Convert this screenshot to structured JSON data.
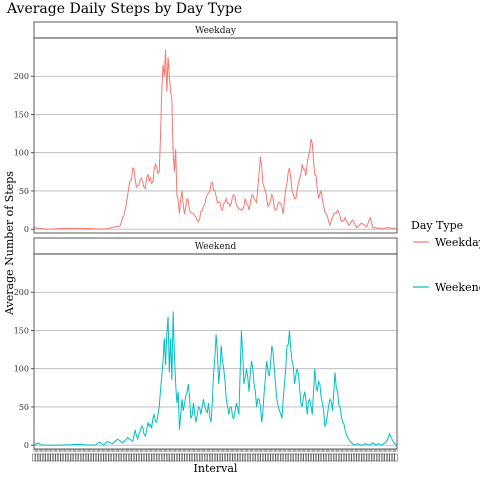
{
  "chart_data": {
    "type": "line",
    "title": "Average Daily Steps by Day Type",
    "xlabel": "Interval",
    "ylabel": "Average Number of Steps",
    "ylim": [
      -5,
      250
    ],
    "yticks": [
      0,
      50,
      100,
      150,
      200
    ],
    "x_range": [
      0,
      287
    ],
    "grid": true,
    "legend": {
      "title": "Day Type",
      "position": "right",
      "entries": [
        "Weekday",
        "Weekend"
      ]
    },
    "panels": [
      {
        "label": "Weekday",
        "color": "#F8766D",
        "keypoints": [
          [
            0,
            2
          ],
          [
            10,
            0
          ],
          [
            24,
            1
          ],
          [
            40,
            1
          ],
          [
            56,
            0
          ],
          [
            64,
            3
          ],
          [
            68,
            4
          ],
          [
            72,
            25
          ],
          [
            75,
            55
          ],
          [
            78,
            80
          ],
          [
            81,
            55
          ],
          [
            84,
            65
          ],
          [
            87,
            55
          ],
          [
            90,
            72
          ],
          [
            93,
            60
          ],
          [
            96,
            85
          ],
          [
            99,
            75
          ],
          [
            101,
            180
          ],
          [
            102,
            215
          ],
          [
            103,
            200
          ],
          [
            104,
            235
          ],
          [
            105,
            180
          ],
          [
            106,
            225
          ],
          [
            107,
            200
          ],
          [
            108,
            180
          ],
          [
            109,
            170
          ],
          [
            110,
            100
          ],
          [
            111,
            75
          ],
          [
            112,
            105
          ],
          [
            113,
            45
          ],
          [
            115,
            20
          ],
          [
            117,
            50
          ],
          [
            119,
            20
          ],
          [
            121,
            40
          ],
          [
            123,
            25
          ],
          [
            126,
            20
          ],
          [
            130,
            10
          ],
          [
            134,
            30
          ],
          [
            137,
            45
          ],
          [
            140,
            60
          ],
          [
            143,
            50
          ],
          [
            146,
            35
          ],
          [
            149,
            25
          ],
          [
            152,
            40
          ],
          [
            155,
            30
          ],
          [
            158,
            45
          ],
          [
            161,
            30
          ],
          [
            164,
            25
          ],
          [
            167,
            40
          ],
          [
            170,
            25
          ],
          [
            173,
            45
          ],
          [
            176,
            35
          ],
          [
            179,
            95
          ],
          [
            181,
            60
          ],
          [
            183,
            50
          ],
          [
            185,
            30
          ],
          [
            188,
            45
          ],
          [
            191,
            25
          ],
          [
            194,
            35
          ],
          [
            197,
            20
          ],
          [
            200,
            60
          ],
          [
            202,
            80
          ],
          [
            204,
            50
          ],
          [
            206,
            40
          ],
          [
            209,
            60
          ],
          [
            212,
            85
          ],
          [
            215,
            70
          ],
          [
            217,
            95
          ],
          [
            219,
            118
          ],
          [
            221,
            90
          ],
          [
            223,
            70
          ],
          [
            225,
            40
          ],
          [
            227,
            50
          ],
          [
            229,
            30
          ],
          [
            231,
            20
          ],
          [
            234,
            5
          ],
          [
            237,
            20
          ],
          [
            240,
            25
          ],
          [
            243,
            10
          ],
          [
            246,
            15
          ],
          [
            249,
            5
          ],
          [
            252,
            12
          ],
          [
            255,
            2
          ],
          [
            259,
            8
          ],
          [
            263,
            3
          ],
          [
            266,
            15
          ],
          [
            268,
            2
          ],
          [
            275,
            1
          ],
          [
            280,
            2
          ],
          [
            287,
            0
          ]
        ]
      },
      {
        "label": "Weekend",
        "color": "#00BFC4",
        "keypoints": [
          [
            0,
            0
          ],
          [
            3,
            3
          ],
          [
            6,
            0
          ],
          [
            20,
            0
          ],
          [
            35,
            1
          ],
          [
            48,
            0
          ],
          [
            52,
            4
          ],
          [
            55,
            0
          ],
          [
            58,
            5
          ],
          [
            62,
            2
          ],
          [
            66,
            8
          ],
          [
            70,
            3
          ],
          [
            74,
            10
          ],
          [
            78,
            5
          ],
          [
            80,
            20
          ],
          [
            82,
            8
          ],
          [
            85,
            25
          ],
          [
            88,
            12
          ],
          [
            90,
            30
          ],
          [
            93,
            22
          ],
          [
            95,
            40
          ],
          [
            97,
            30
          ],
          [
            99,
            50
          ],
          [
            101,
            90
          ],
          [
            103,
            140
          ],
          [
            104,
            105
          ],
          [
            105,
            145
          ],
          [
            106,
            168
          ],
          [
            107,
            95
          ],
          [
            108,
            140
          ],
          [
            109,
            85
          ],
          [
            110,
            175
          ],
          [
            111,
            120
          ],
          [
            112,
            80
          ],
          [
            113,
            55
          ],
          [
            114,
            70
          ],
          [
            115,
            20
          ],
          [
            116,
            40
          ],
          [
            117,
            60
          ],
          [
            118,
            45
          ],
          [
            120,
            65
          ],
          [
            122,
            80
          ],
          [
            124,
            35
          ],
          [
            126,
            55
          ],
          [
            128,
            30
          ],
          [
            130,
            50
          ],
          [
            132,
            40
          ],
          [
            134,
            60
          ],
          [
            136,
            45
          ],
          [
            138,
            55
          ],
          [
            140,
            30
          ],
          [
            142,
            95
          ],
          [
            144,
            145
          ],
          [
            145,
            120
          ],
          [
            146,
            80
          ],
          [
            148,
            130
          ],
          [
            150,
            100
          ],
          [
            152,
            60
          ],
          [
            154,
            40
          ],
          [
            156,
            50
          ],
          [
            158,
            35
          ],
          [
            160,
            55
          ],
          [
            162,
            40
          ],
          [
            164,
            150
          ],
          [
            165,
            120
          ],
          [
            166,
            80
          ],
          [
            168,
            100
          ],
          [
            170,
            70
          ],
          [
            172,
            110
          ],
          [
            174,
            80
          ],
          [
            176,
            50
          ],
          [
            178,
            60
          ],
          [
            180,
            30
          ],
          [
            182,
            70
          ],
          [
            184,
            110
          ],
          [
            186,
            90
          ],
          [
            188,
            130
          ],
          [
            190,
            100
          ],
          [
            192,
            60
          ],
          [
            194,
            45
          ],
          [
            196,
            35
          ],
          [
            198,
            80
          ],
          [
            200,
            130
          ],
          [
            202,
            150
          ],
          [
            204,
            110
          ],
          [
            206,
            80
          ],
          [
            208,
            100
          ],
          [
            210,
            75
          ],
          [
            212,
            50
          ],
          [
            214,
            70
          ],
          [
            216,
            40
          ],
          [
            218,
            60
          ],
          [
            220,
            40
          ],
          [
            222,
            100
          ],
          [
            224,
            70
          ],
          [
            226,
            80
          ],
          [
            228,
            55
          ],
          [
            230,
            25
          ],
          [
            232,
            40
          ],
          [
            234,
            60
          ],
          [
            236,
            45
          ],
          [
            238,
            95
          ],
          [
            240,
            70
          ],
          [
            242,
            50
          ],
          [
            244,
            30
          ],
          [
            246,
            20
          ],
          [
            248,
            10
          ],
          [
            250,
            5
          ],
          [
            253,
            0
          ],
          [
            256,
            2
          ],
          [
            259,
            0
          ],
          [
            262,
            2
          ],
          [
            265,
            0
          ],
          [
            268,
            3
          ],
          [
            270,
            0
          ],
          [
            272,
            2
          ],
          [
            275,
            0
          ],
          [
            279,
            5
          ],
          [
            281,
            15
          ],
          [
            283,
            8
          ],
          [
            285,
            2
          ],
          [
            287,
            0
          ]
        ]
      }
    ]
  }
}
